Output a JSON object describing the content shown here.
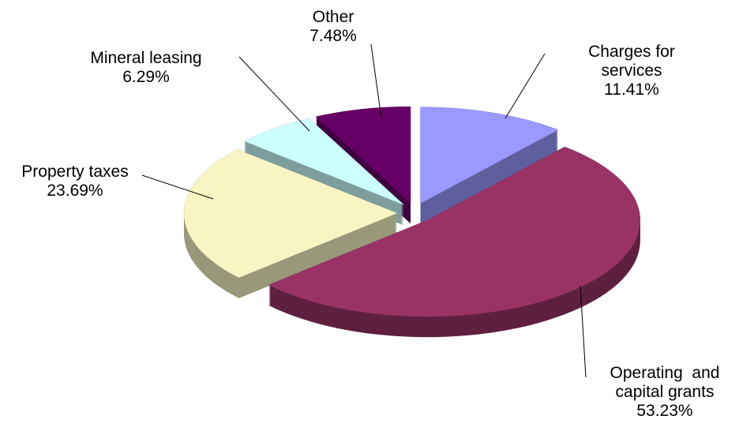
{
  "chart_data": {
    "type": "pie",
    "categories": [
      "Charges for services",
      "Operating  and capital grants",
      "Property taxes",
      "Mineral leasing",
      "Other"
    ],
    "values": [
      11.41,
      53.23,
      23.69,
      6.29,
      7.48
    ],
    "value_labels": [
      "11.41%",
      "53.23%",
      "23.69%",
      "6.29%",
      "7.48%"
    ],
    "colors": [
      "#9999ff",
      "#993366",
      "#f7f5c4",
      "#ccffff",
      "#660066"
    ]
  }
}
